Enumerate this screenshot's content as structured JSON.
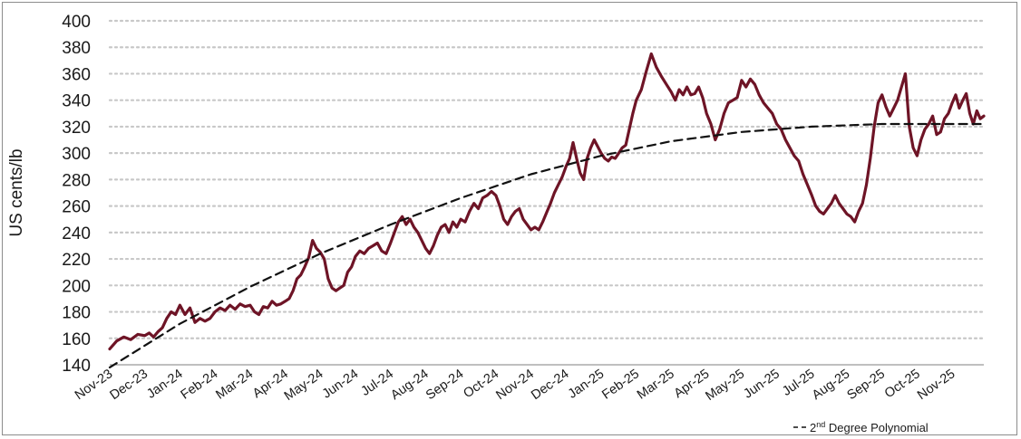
{
  "chart_data": {
    "type": "line",
    "ylabel": "US cents/lb",
    "xlabel": "",
    "ylim": [
      140,
      400
    ],
    "yticks": [
      140,
      160,
      180,
      200,
      220,
      240,
      260,
      280,
      300,
      320,
      340,
      360,
      380,
      400
    ],
    "grid": "horizontal dotted",
    "x_tick_labels": [
      "Nov-23",
      "Dec-23",
      "Jan-24",
      "Feb-24",
      "Mar-24",
      "Apr-24",
      "May-24",
      "Jun-24",
      "Jul-24",
      "Aug-24",
      "Sep-24",
      "Oct-24",
      "Nov-24",
      "Dec-24",
      "Jan-25",
      "Feb-25",
      "Mar-25",
      "Apr-25",
      "May-25",
      "Jun-25",
      "Jul-25",
      "Aug-25",
      "Sep-25",
      "Oct-25",
      "Nov-25"
    ],
    "series": [
      {
        "color": "#6e1426",
        "style": "solid",
        "points": [
          [
            "Nov-23",
            152
          ],
          [
            "Nov-23",
            158
          ],
          [
            "Nov-23",
            161
          ],
          [
            "Nov-23",
            159
          ],
          [
            "Nov-23",
            163
          ],
          [
            "Dec-23",
            162
          ],
          [
            "Dec-23",
            164
          ],
          [
            "Dec-23",
            161
          ],
          [
            "Dec-23",
            165
          ],
          [
            "Dec-23",
            168
          ],
          [
            "Dec-23",
            175
          ],
          [
            "Dec-23",
            180
          ],
          [
            "Dec-23",
            178
          ],
          [
            "Jan-24",
            185
          ],
          [
            "Jan-24",
            178
          ],
          [
            "Jan-24",
            183
          ],
          [
            "Jan-24",
            172
          ],
          [
            "Jan-24",
            175
          ],
          [
            "Jan-24",
            173
          ],
          [
            "Jan-24",
            175
          ],
          [
            "Feb-24",
            180
          ],
          [
            "Feb-24",
            183
          ],
          [
            "Feb-24",
            181
          ],
          [
            "Feb-24",
            185
          ],
          [
            "Feb-24",
            182
          ],
          [
            "Feb-24",
            186
          ],
          [
            "Feb-24",
            184
          ],
          [
            "Mar-24",
            185
          ],
          [
            "Mar-24",
            180
          ],
          [
            "Mar-24",
            178
          ],
          [
            "Mar-24",
            184
          ],
          [
            "Mar-24",
            183
          ],
          [
            "Mar-24",
            188
          ],
          [
            "Mar-24",
            185
          ],
          [
            "Mar-24",
            186
          ],
          [
            "Apr-24",
            188
          ],
          [
            "Apr-24",
            190
          ],
          [
            "Apr-24",
            196
          ],
          [
            "Apr-24",
            205
          ],
          [
            "Apr-24",
            208
          ],
          [
            "Apr-24",
            214
          ],
          [
            "Apr-24",
            221
          ],
          [
            "Apr-24",
            234
          ],
          [
            "Apr-24",
            228
          ],
          [
            "May-24",
            225
          ],
          [
            "May-24",
            220
          ],
          [
            "May-24",
            205
          ],
          [
            "May-24",
            198
          ],
          [
            "May-24",
            196
          ],
          [
            "May-24",
            198
          ],
          [
            "May-24",
            200
          ],
          [
            "May-24",
            210
          ],
          [
            "May-24",
            214
          ],
          [
            "Jun-24",
            222
          ],
          [
            "Jun-24",
            226
          ],
          [
            "Jun-24",
            224
          ],
          [
            "Jun-24",
            228
          ],
          [
            "Jun-24",
            230
          ],
          [
            "Jun-24",
            232
          ],
          [
            "Jun-24",
            226
          ],
          [
            "Jun-24",
            224
          ],
          [
            "Jul-24",
            232
          ],
          [
            "Jul-24",
            240
          ],
          [
            "Jul-24",
            248
          ],
          [
            "Jul-24",
            252
          ],
          [
            "Jul-24",
            246
          ],
          [
            "Jul-24",
            250
          ],
          [
            "Jul-24",
            244
          ],
          [
            "Jul-24",
            240
          ],
          [
            "Jul-24",
            234
          ],
          [
            "Aug-24",
            228
          ],
          [
            "Aug-24",
            224
          ],
          [
            "Aug-24",
            230
          ],
          [
            "Aug-24",
            238
          ],
          [
            "Aug-24",
            244
          ],
          [
            "Aug-24",
            246
          ],
          [
            "Aug-24",
            240
          ],
          [
            "Aug-24",
            248
          ],
          [
            "Aug-24",
            244
          ],
          [
            "Sep-24",
            250
          ],
          [
            "Sep-24",
            248
          ],
          [
            "Sep-24",
            256
          ],
          [
            "Sep-24",
            262
          ],
          [
            "Sep-24",
            258
          ],
          [
            "Sep-24",
            266
          ],
          [
            "Sep-24",
            268
          ],
          [
            "Sep-24",
            271
          ],
          [
            "Oct-24",
            268
          ],
          [
            "Oct-24",
            260
          ],
          [
            "Oct-24",
            250
          ],
          [
            "Oct-24",
            246
          ],
          [
            "Oct-24",
            252
          ],
          [
            "Oct-24",
            256
          ],
          [
            "Oct-24",
            258
          ],
          [
            "Oct-24",
            250
          ],
          [
            "Oct-24",
            246
          ],
          [
            "Nov-24",
            242
          ],
          [
            "Nov-24",
            244
          ],
          [
            "Nov-24",
            242
          ],
          [
            "Nov-24",
            248
          ],
          [
            "Nov-24",
            255
          ],
          [
            "Nov-24",
            262
          ],
          [
            "Nov-24",
            270
          ],
          [
            "Nov-24",
            276
          ],
          [
            "Nov-24",
            282
          ],
          [
            "Dec-24",
            290
          ],
          [
            "Dec-24",
            296
          ],
          [
            "Dec-24",
            308
          ],
          [
            "Dec-24",
            296
          ],
          [
            "Dec-24",
            285
          ],
          [
            "Dec-24",
            280
          ],
          [
            "Dec-24",
            296
          ],
          [
            "Dec-24",
            304
          ],
          [
            "Dec-24",
            310
          ],
          [
            "Dec-24",
            305
          ],
          [
            "Jan-25",
            300
          ],
          [
            "Jan-25",
            296
          ],
          [
            "Jan-25",
            294
          ],
          [
            "Jan-25",
            297
          ],
          [
            "Jan-25",
            296
          ],
          [
            "Jan-25",
            300
          ],
          [
            "Jan-25",
            304
          ],
          [
            "Jan-25",
            306
          ],
          [
            "Jan-25",
            318
          ],
          [
            "Jan-25",
            330
          ],
          [
            "Feb-25",
            340
          ],
          [
            "Feb-25",
            348
          ],
          [
            "Feb-25",
            362
          ],
          [
            "Feb-25",
            375
          ],
          [
            "Feb-25",
            365
          ],
          [
            "Feb-25",
            358
          ],
          [
            "Feb-25",
            352
          ],
          [
            "Mar-25",
            346
          ],
          [
            "Mar-25",
            340
          ],
          [
            "Mar-25",
            348
          ],
          [
            "Mar-25",
            344
          ],
          [
            "Mar-25",
            350
          ],
          [
            "Mar-25",
            344
          ],
          [
            "Mar-25",
            345
          ],
          [
            "Mar-25",
            350
          ],
          [
            "Mar-25",
            342
          ],
          [
            "Apr-25",
            330
          ],
          [
            "Apr-25",
            322
          ],
          [
            "Apr-25",
            310
          ],
          [
            "Apr-25",
            318
          ],
          [
            "Apr-25",
            330
          ],
          [
            "Apr-25",
            338
          ],
          [
            "Apr-25",
            340
          ],
          [
            "Apr-25",
            342
          ],
          [
            "May-25",
            355
          ],
          [
            "May-25",
            350
          ],
          [
            "May-25",
            356
          ],
          [
            "May-25",
            352
          ],
          [
            "May-25",
            344
          ],
          [
            "May-25",
            338
          ],
          [
            "May-25",
            334
          ],
          [
            "May-25",
            330
          ],
          [
            "Jun-25",
            322
          ],
          [
            "Jun-25",
            318
          ],
          [
            "Jun-25",
            310
          ],
          [
            "Jun-25",
            304
          ],
          [
            "Jun-25",
            298
          ],
          [
            "Jun-25",
            294
          ],
          [
            "Jun-25",
            284
          ],
          [
            "Jun-25",
            276
          ],
          [
            "Jul-25",
            268
          ],
          [
            "Jul-25",
            260
          ],
          [
            "Jul-25",
            256
          ],
          [
            "Jul-25",
            254
          ],
          [
            "Jul-25",
            258
          ],
          [
            "Jul-25",
            262
          ],
          [
            "Jul-25",
            268
          ],
          [
            "Jul-25",
            262
          ],
          [
            "Jul-25",
            258
          ],
          [
            "Aug-25",
            254
          ],
          [
            "Aug-25",
            252
          ],
          [
            "Aug-25",
            248
          ],
          [
            "Aug-25",
            256
          ],
          [
            "Aug-25",
            262
          ],
          [
            "Aug-25",
            276
          ],
          [
            "Aug-25",
            296
          ],
          [
            "Aug-25",
            320
          ],
          [
            "Aug-25",
            338
          ],
          [
            "Sep-25",
            344
          ],
          [
            "Sep-25",
            335
          ],
          [
            "Sep-25",
            328
          ],
          [
            "Sep-25",
            334
          ],
          [
            "Sep-25",
            340
          ],
          [
            "Sep-25",
            350
          ],
          [
            "Sep-25",
            360
          ],
          [
            "Sep-25",
            320
          ],
          [
            "Sep-25",
            304
          ],
          [
            "Oct-25",
            298
          ],
          [
            "Oct-25",
            310
          ],
          [
            "Oct-25",
            318
          ],
          [
            "Oct-25",
            322
          ],
          [
            "Oct-25",
            328
          ],
          [
            "Oct-25",
            314
          ],
          [
            "Oct-25",
            316
          ],
          [
            "Oct-25",
            326
          ],
          [
            "Oct-25",
            330
          ],
          [
            "Nov-25",
            338
          ],
          [
            "Nov-25",
            344
          ],
          [
            "Nov-25",
            334
          ],
          [
            "Nov-25",
            340
          ],
          [
            "Nov-25",
            345
          ],
          [
            "Nov-25",
            330
          ],
          [
            "Nov-25",
            322
          ],
          [
            "Nov-25",
            332
          ],
          [
            "Nov-25",
            326
          ],
          [
            "Nov-25",
            328
          ]
        ]
      },
      {
        "name": "2nd Degree Polynomial",
        "color": "#111111",
        "style": "dashed",
        "points": [
          [
            "Nov-23",
            138
          ],
          [
            "Jan-24",
            171
          ],
          [
            "Mar-24",
            199
          ],
          [
            "May-24",
            224
          ],
          [
            "Jul-24",
            246
          ],
          [
            "Sep-24",
            266
          ],
          [
            "Nov-24",
            284
          ],
          [
            "Jan-25",
            298
          ],
          [
            "Mar-25",
            309
          ],
          [
            "May-25",
            316
          ],
          [
            "Jul-25",
            320
          ],
          [
            "Sep-25",
            322
          ],
          [
            "Nov-25",
            322
          ]
        ]
      }
    ],
    "legend": {
      "position": "bottom-right",
      "entries": [
        {
          "prefix": "2",
          "sup": "nd",
          "rest": " Degree Polynomial",
          "style": "dashed"
        }
      ]
    }
  }
}
